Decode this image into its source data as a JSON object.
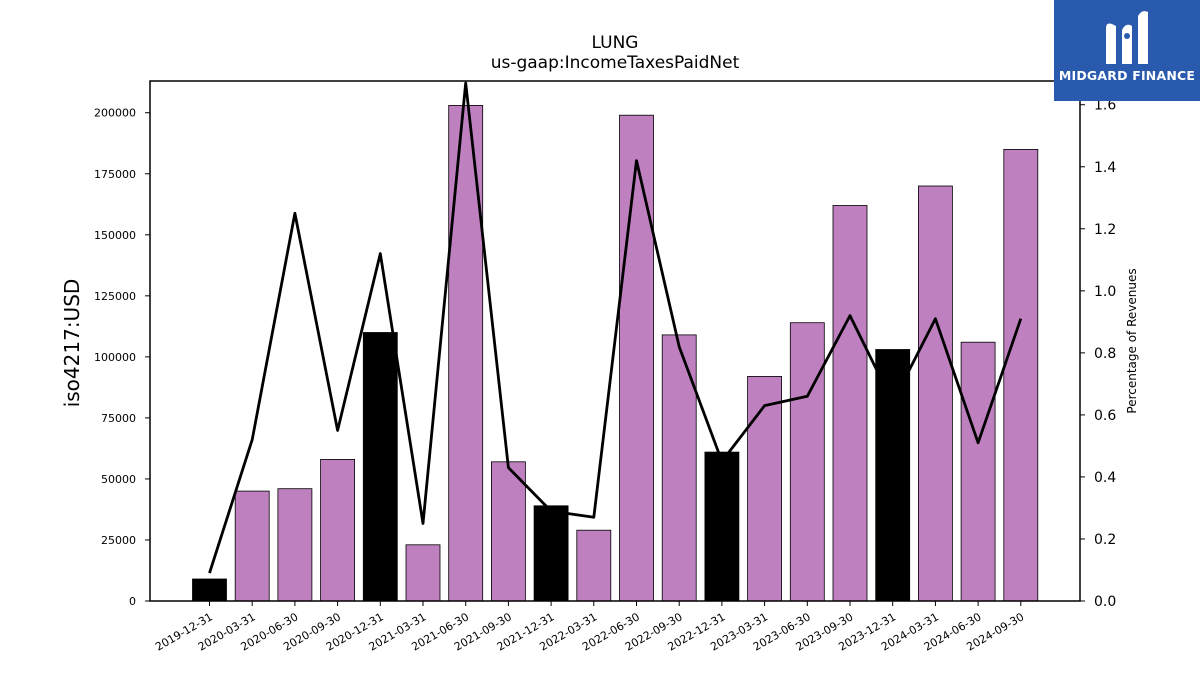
{
  "chart_data": {
    "type": "bar",
    "title": "LUNG",
    "subtitle": "us-gaap:IncomeTaxesPaidNet",
    "ylabel": "iso4217:USD",
    "y2label": "Percentage of Revenues",
    "categories": [
      "2019-12-31",
      "2020-03-31",
      "2020-06-30",
      "2020-09-30",
      "2020-12-31",
      "2021-03-31",
      "2021-06-30",
      "2021-09-30",
      "2021-12-31",
      "2022-03-31",
      "2022-06-30",
      "2022-09-30",
      "2022-12-31",
      "2023-03-31",
      "2023-06-30",
      "2023-09-30",
      "2023-12-31",
      "2024-03-31",
      "2024-06-30",
      "2024-09-30"
    ],
    "series": [
      {
        "type": "bar",
        "values": [
          9000,
          45000,
          46000,
          58000,
          110000,
          23000,
          203000,
          57000,
          39000,
          29000,
          199000,
          109000,
          61000,
          92000,
          114000,
          162000,
          103000,
          170000,
          106000,
          185000
        ],
        "colors": [
          "#000000",
          "#bf80bf",
          "#bf80bf",
          "#bf80bf",
          "#000000",
          "#bf80bf",
          "#bf80bf",
          "#bf80bf",
          "#000000",
          "#bf80bf",
          "#bf80bf",
          "#bf80bf",
          "#000000",
          "#bf80bf",
          "#bf80bf",
          "#bf80bf",
          "#000000",
          "#bf80bf",
          "#bf80bf",
          "#bf80bf"
        ]
      },
      {
        "type": "line",
        "axis": "right",
        "color": "#000000",
        "values": [
          0.09,
          0.52,
          1.25,
          0.55,
          1.12,
          0.25,
          1.67,
          0.43,
          0.29,
          0.27,
          1.42,
          0.82,
          0.45,
          0.63,
          0.66,
          0.92,
          0.64,
          0.91,
          0.51,
          0.91
        ]
      }
    ],
    "ylim": [
      0,
      213000
    ],
    "y2lim": [
      0,
      1.6765
    ],
    "yticks": [
      0,
      25000,
      50000,
      75000,
      100000,
      125000,
      150000,
      175000,
      200000
    ],
    "y2ticks": [
      "0.0",
      "0.2",
      "0.4",
      "0.6",
      "0.8",
      "1.0",
      "1.2",
      "1.4",
      "1.6"
    ],
    "grid": false
  },
  "logo": {
    "text": "MIDGARD FINANCE",
    "bg": "#2a5aad"
  }
}
